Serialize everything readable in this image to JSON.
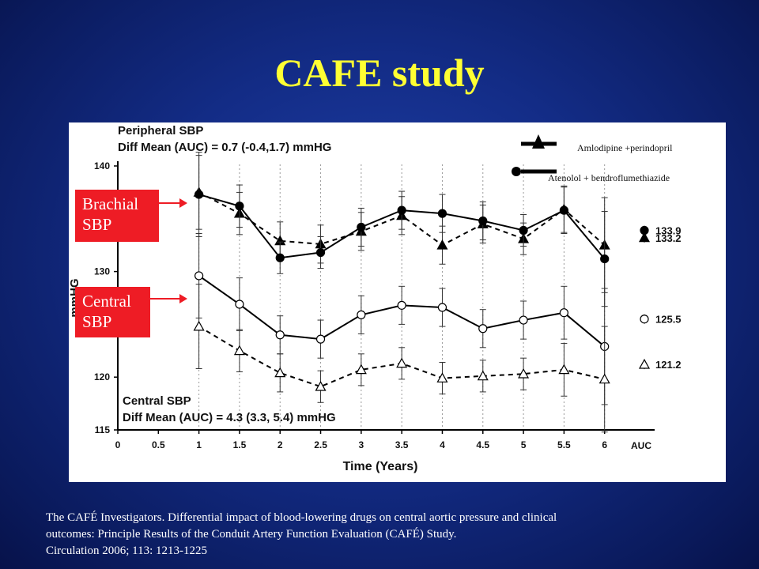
{
  "slide": {
    "title": "CAFE study",
    "reference_lines": [
      "The CAFÉ Investigators. Differential impact of blood-lowering drugs on central aortic pressure and clinical",
      " outcomes: Principle Results of  the Conduit Artery Function Evaluation (CAFÉ) Study.",
      "Circulation 2006; 113: 1213-1225"
    ]
  },
  "callouts": {
    "brachial": [
      "Brachial",
      "SBP"
    ],
    "central": [
      "Central",
      "SBP"
    ]
  },
  "chart_data": {
    "type": "line",
    "xlabel": "Time (Years)",
    "ylabel": "mmHG",
    "xlim": [
      0,
      6.5
    ],
    "ylim": [
      115,
      140
    ],
    "x_ticks": [
      0,
      0.5,
      1,
      1.5,
      2,
      2.5,
      3,
      3.5,
      4,
      4.5,
      5,
      5.5,
      6
    ],
    "x_tick_labels": [
      "0",
      "0.5",
      "1",
      "1.5",
      "2",
      "2.5",
      "3",
      "3.5",
      "4",
      "4.5",
      "5",
      "5.5",
      "6"
    ],
    "y_ticks": [
      115,
      120,
      130,
      140
    ],
    "y_tick_labels": [
      "115",
      "120",
      "130",
      "140"
    ],
    "auc_label": "AUC",
    "annotations": {
      "peripheral_title": "Peripheral SBP",
      "peripheral_diff": "Diff Mean (AUC) = 0.7 (-0.4,1.7) mmHG",
      "central_title": "Central SBP",
      "central_diff": "Diff Mean (AUC) = 4.3 (3.3, 5.4) mmHG"
    },
    "legend": {
      "placement": "top-right",
      "entries": [
        {
          "label": "Amlodipine +perindopril",
          "marker": "triangle"
        },
        {
          "label": "Atenolol + bendroflumethiazide",
          "marker": "circle"
        }
      ]
    },
    "x": [
      1,
      1.5,
      2,
      2.5,
      3,
      3.5,
      4,
      4.5,
      5,
      5.5,
      6
    ],
    "series": [
      {
        "group": "peripheral",
        "marker": "triangle",
        "fill": "filled",
        "line": "dashed",
        "values": [
          137.5,
          135.5,
          132.9,
          132.6,
          133.8,
          135.3,
          132.5,
          134.5,
          133.1,
          135.9,
          132.5
        ],
        "err": [
          3.5,
          2.0,
          1.8,
          1.8,
          1.8,
          1.8,
          1.8,
          1.8,
          1.5,
          2.2,
          4.5
        ],
        "auc": 133.2,
        "auc_label": "133.2"
      },
      {
        "group": "peripheral",
        "marker": "circle",
        "fill": "filled",
        "line": "solid",
        "values": [
          137.3,
          136.2,
          131.3,
          131.8,
          134.2,
          135.8,
          135.5,
          134.8,
          133.9,
          135.8,
          131.2
        ],
        "err": [
          4.0,
          2.0,
          1.5,
          1.5,
          1.8,
          1.8,
          1.8,
          1.8,
          1.5,
          2.2,
          4.5
        ],
        "auc": 133.9,
        "auc_label": "133.9"
      },
      {
        "group": "central",
        "marker": "circle",
        "fill": "open",
        "line": "solid",
        "values": [
          129.6,
          126.9,
          124.0,
          123.6,
          125.9,
          126.8,
          126.6,
          124.6,
          125.4,
          126.1,
          122.9
        ],
        "err": [
          4.0,
          2.5,
          1.8,
          1.8,
          1.8,
          1.8,
          1.8,
          1.8,
          1.8,
          2.5,
          5.5
        ],
        "auc": 125.5,
        "auc_label": "125.5"
      },
      {
        "group": "central",
        "marker": "triangle",
        "fill": "open",
        "line": "dashed",
        "values": [
          124.8,
          122.5,
          120.4,
          119.1,
          120.7,
          121.3,
          119.9,
          120.1,
          120.3,
          120.7,
          119.8
        ],
        "err": [
          4.0,
          2.0,
          1.8,
          1.5,
          1.5,
          1.5,
          1.5,
          1.5,
          1.5,
          2.5,
          5.0
        ],
        "auc": 121.2,
        "auc_label": "121.2"
      }
    ]
  }
}
